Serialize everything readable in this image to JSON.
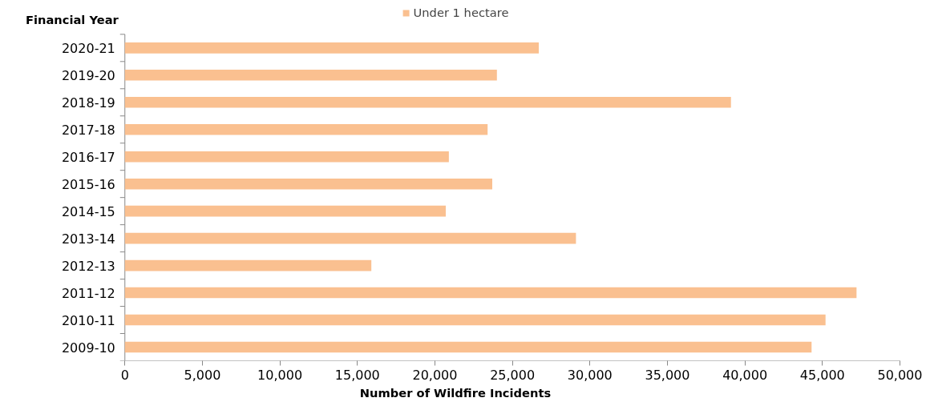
{
  "chart_data": {
    "type": "bar",
    "orientation": "horizontal",
    "ylabel": "Financial Year",
    "xlabel": "Number of Wildfire Incidents",
    "categories": [
      "2020-21",
      "2019-20",
      "2018-19",
      "2017-18",
      "2016-17",
      "2015-16",
      "2014-15",
      "2013-14",
      "2012-13",
      "2011-12",
      "2010-11",
      "2009-10"
    ],
    "series": [
      {
        "name": "Under 1 hectare",
        "color": "#fac090",
        "values": [
          26700,
          24000,
          39100,
          23400,
          20900,
          23700,
          20700,
          29100,
          15900,
          47200,
          45200,
          44300
        ]
      }
    ],
    "xlim": [
      0,
      50000
    ],
    "xticks": [
      {
        "value": 0,
        "label": "0"
      },
      {
        "value": 5000,
        "label": "5,000"
      },
      {
        "value": 10000,
        "label": "10,000"
      },
      {
        "value": 15000,
        "label": "15,000"
      },
      {
        "value": 20000,
        "label": "20,000"
      },
      {
        "value": 25000,
        "label": "25,000"
      },
      {
        "value": 30000,
        "label": "30,000"
      },
      {
        "value": 35000,
        "label": "35,000"
      },
      {
        "value": 40000,
        "label": "40,000"
      },
      {
        "value": 45000,
        "label": "45,000"
      },
      {
        "value": 50000,
        "label": "50,000"
      }
    ],
    "grid": false,
    "legend": "top"
  }
}
